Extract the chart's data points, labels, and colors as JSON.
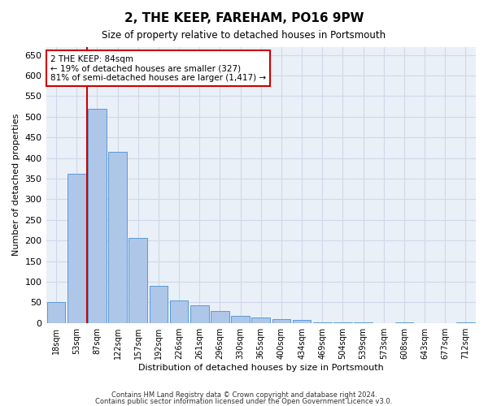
{
  "title": "2, THE KEEP, FAREHAM, PO16 9PW",
  "subtitle": "Size of property relative to detached houses in Portsmouth",
  "xlabel": "Distribution of detached houses by size in Portsmouth",
  "ylabel": "Number of detached properties",
  "categories": [
    "18sqm",
    "53sqm",
    "87sqm",
    "122sqm",
    "157sqm",
    "192sqm",
    "226sqm",
    "261sqm",
    "296sqm",
    "330sqm",
    "365sqm",
    "400sqm",
    "434sqm",
    "469sqm",
    "504sqm",
    "539sqm",
    "573sqm",
    "608sqm",
    "643sqm",
    "677sqm",
    "712sqm"
  ],
  "values": [
    50,
    362,
    520,
    415,
    207,
    90,
    55,
    42,
    28,
    18,
    13,
    10,
    8,
    2,
    2,
    1,
    0,
    1,
    0,
    0,
    1
  ],
  "bar_color": "#aec6e8",
  "bar_edge_color": "#5b9bd5",
  "grid_color": "#d0d8e8",
  "background_color": "#eaf0f8",
  "vline_color": "#cc0000",
  "vline_x": 1.5,
  "annotation_text": "2 THE KEEP: 84sqm\n← 19% of detached houses are smaller (327)\n81% of semi-detached houses are larger (1,417) →",
  "annotation_box_color": "#ffffff",
  "annotation_box_edge_color": "#cc0000",
  "ylim": [
    0,
    670
  ],
  "yticks": [
    0,
    50,
    100,
    150,
    200,
    250,
    300,
    350,
    400,
    450,
    500,
    550,
    600,
    650
  ],
  "footer1": "Contains HM Land Registry data © Crown copyright and database right 2024.",
  "footer2": "Contains public sector information licensed under the Open Government Licence v3.0."
}
